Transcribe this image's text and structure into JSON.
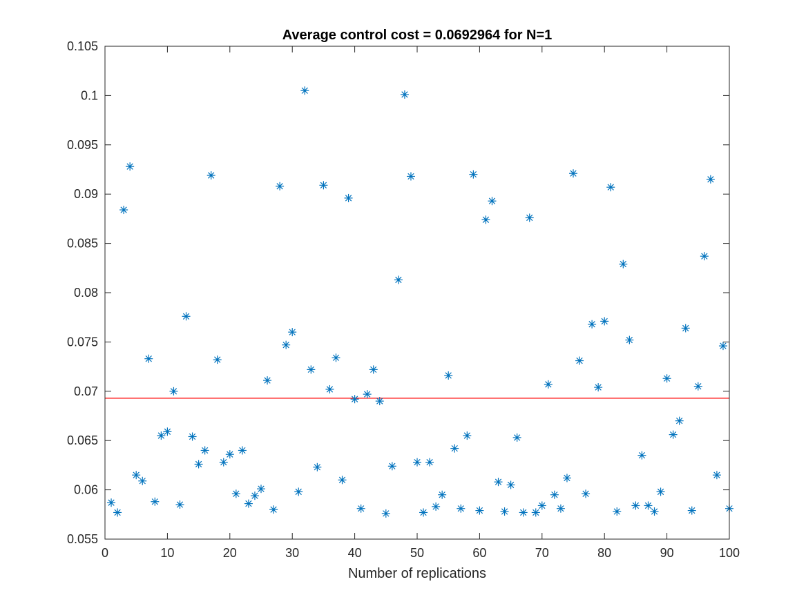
{
  "chart_data": {
    "type": "scatter",
    "title": "Average control cost = 0.0692964 for N=1",
    "xlabel": "Number of replications",
    "ylabel": "",
    "xlim": [
      0,
      100
    ],
    "ylim": [
      0.055,
      0.105
    ],
    "xticks": [
      "0",
      "10",
      "20",
      "30",
      "40",
      "50",
      "60",
      "70",
      "80",
      "90",
      "100"
    ],
    "yticks": [
      "0.055",
      "0.06",
      "0.065",
      "0.07",
      "0.075",
      "0.08",
      "0.085",
      "0.09",
      "0.095",
      "0.1",
      "0.105"
    ],
    "grid": false,
    "marker": "asterisk",
    "series": [
      {
        "color": "#0072BD",
        "x": [
          1,
          2,
          3,
          4,
          5,
          6,
          7,
          8,
          9,
          10,
          11,
          12,
          13,
          14,
          15,
          16,
          17,
          18,
          19,
          20,
          21,
          22,
          23,
          24,
          25,
          26,
          27,
          28,
          29,
          30,
          31,
          32,
          33,
          34,
          35,
          36,
          37,
          38,
          39,
          40,
          41,
          42,
          43,
          44,
          45,
          46,
          47,
          48,
          49,
          50,
          51,
          52,
          53,
          54,
          55,
          56,
          57,
          58,
          59,
          60,
          61,
          62,
          63,
          64,
          65,
          66,
          67,
          68,
          69,
          70,
          71,
          72,
          73,
          74,
          75,
          76,
          77,
          78,
          79,
          80,
          81,
          82,
          83,
          84,
          85,
          86,
          87,
          88,
          89,
          90,
          91,
          92,
          93,
          94,
          95,
          96,
          97,
          98,
          99,
          100
        ],
        "y": [
          0.0587,
          0.0577,
          0.0884,
          0.0928,
          0.0615,
          0.0609,
          0.0733,
          0.0588,
          0.0655,
          0.0659,
          0.07,
          0.0585,
          0.0776,
          0.0654,
          0.0626,
          0.064,
          0.0919,
          0.0732,
          0.0628,
          0.0636,
          0.0596,
          0.064,
          0.0586,
          0.0594,
          0.0601,
          0.0711,
          0.058,
          0.0908,
          0.0747,
          0.076,
          0.0598,
          0.1005,
          0.0722,
          0.0623,
          0.0909,
          0.0702,
          0.0734,
          0.061,
          0.0896,
          0.0692,
          0.0581,
          0.0697,
          0.0722,
          0.069,
          0.0576,
          0.0624,
          0.0813,
          0.1001,
          0.0918,
          0.0628,
          0.0577,
          0.0628,
          0.0583,
          0.0595,
          0.0716,
          0.0642,
          0.0581,
          0.0655,
          0.092,
          0.0579,
          0.0874,
          0.0893,
          0.0608,
          0.0578,
          0.0605,
          0.0653,
          0.0577,
          0.0876,
          0.0577,
          0.0584,
          0.0707,
          0.0595,
          0.0581,
          0.0612,
          0.0921,
          0.0731,
          0.0596,
          0.0768,
          0.0704,
          0.0771,
          0.0907,
          0.0578,
          0.0829,
          0.0752,
          0.0584,
          0.0635,
          0.0584,
          0.0578,
          0.0598,
          0.0713,
          0.0656,
          0.067,
          0.0764,
          0.0579,
          0.0705,
          0.0837,
          0.0915,
          0.0615,
          0.0746,
          0.0581
        ]
      }
    ],
    "reference_line": {
      "y": 0.0692964,
      "color": "#FF0000"
    }
  }
}
